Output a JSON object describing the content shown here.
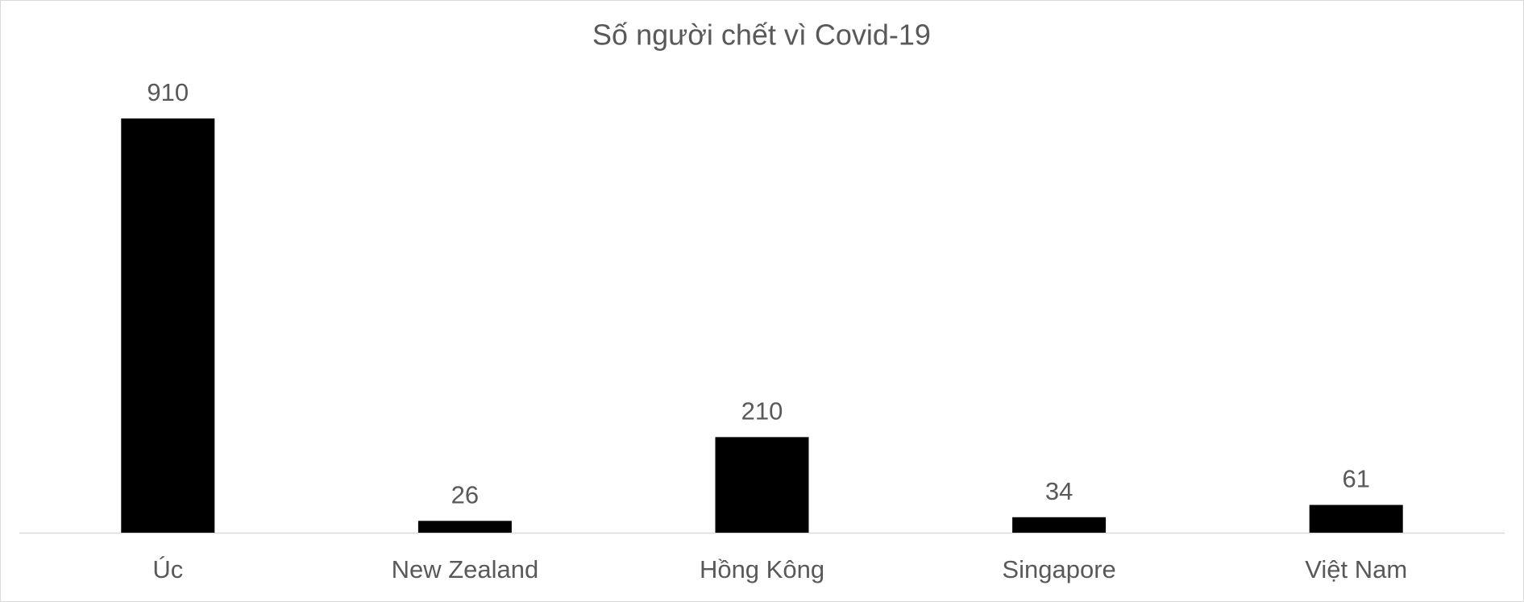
{
  "chart_data": {
    "type": "bar",
    "title": "Số người chết vì Covid-19",
    "categories": [
      "Úc",
      "New Zealand",
      "Hồng Kông",
      "Singapore",
      "Việt Nam"
    ],
    "values": [
      910,
      26,
      210,
      34,
      61
    ],
    "color": "#000000",
    "grid": false
  }
}
